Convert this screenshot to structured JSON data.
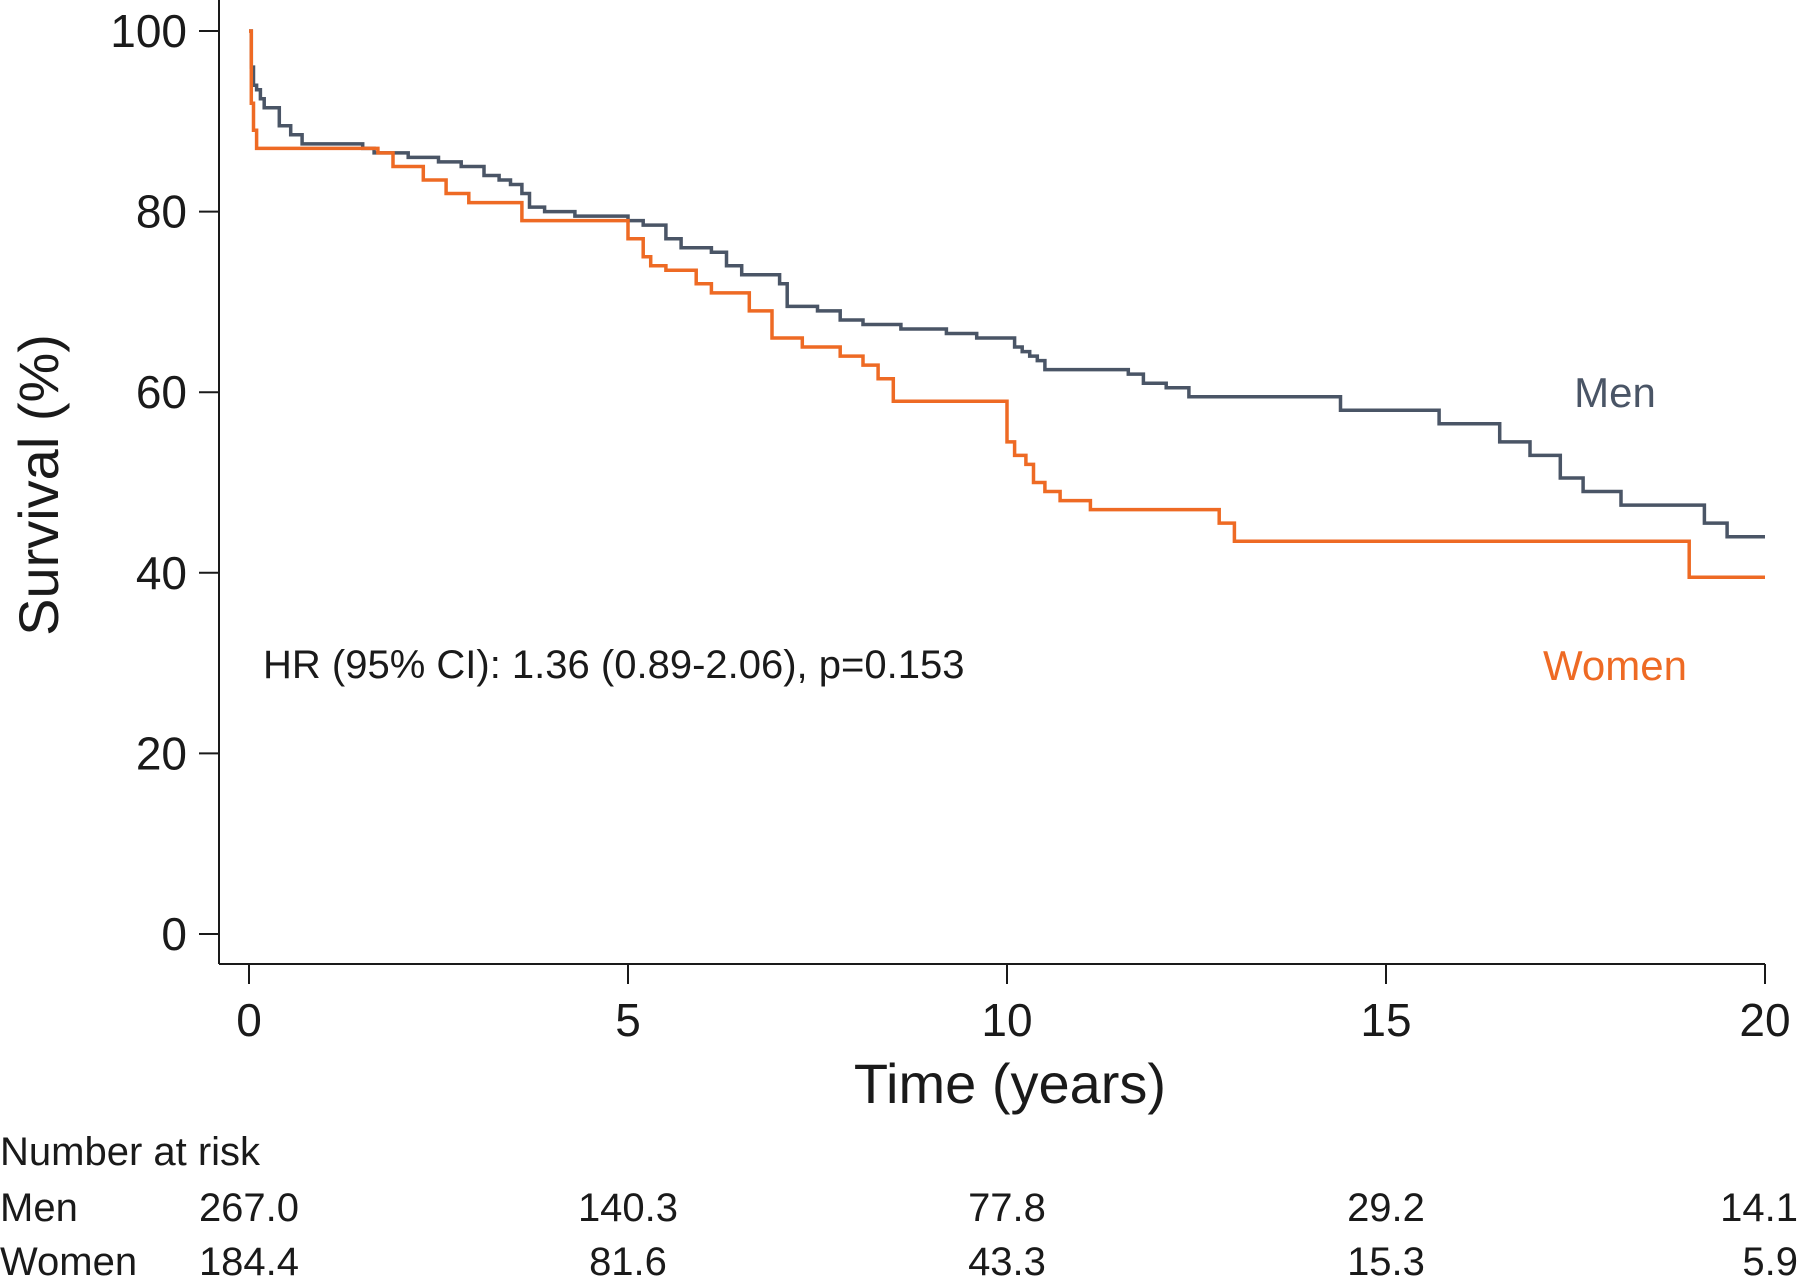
{
  "chart_data": {
    "type": "line",
    "step": true,
    "xlabel": "Time (years)",
    "ylabel": "Survival (%)",
    "xlim": [
      0,
      20
    ],
    "ylim": [
      0,
      100
    ],
    "xticks": [
      "0",
      "5",
      "10",
      "15",
      "20"
    ],
    "yticks": [
      "0",
      "20",
      "40",
      "60",
      "80",
      "100"
    ],
    "grid": false,
    "annotation": "HR (95% CI): 1.36 (0.89-2.06), p=0.153",
    "colors": {
      "men": "#4a5566",
      "women": "#ee6a24"
    },
    "series": [
      {
        "name": "Men",
        "x": [
          0,
          0.03,
          0.06,
          0.1,
          0.15,
          0.2,
          0.4,
          0.55,
          0.7,
          1.5,
          1.65,
          2.1,
          2.5,
          2.8,
          3.1,
          3.3,
          3.45,
          3.6,
          3.7,
          3.9,
          4.3,
          5.0,
          5.2,
          5.5,
          5.7,
          6.1,
          6.3,
          6.5,
          7.0,
          7.1,
          7.5,
          7.8,
          8.1,
          8.6,
          9.2,
          9.6,
          10.1,
          10.2,
          10.3,
          10.4,
          10.5,
          11.0,
          11.6,
          11.8,
          12.1,
          12.4,
          13.0,
          14.4,
          15.7,
          16.5,
          16.9,
          17.3,
          17.6,
          18.1,
          19.2,
          19.5,
          20.0
        ],
        "y": [
          100,
          96,
          94,
          93.5,
          92.5,
          91.5,
          89.5,
          88.5,
          87.5,
          87,
          86.5,
          86,
          85.5,
          85,
          84,
          83.5,
          83,
          82,
          80.5,
          80,
          79.5,
          79,
          78.5,
          77,
          76,
          75.5,
          74,
          73,
          72,
          69.5,
          69,
          68,
          67.5,
          67,
          66.5,
          66,
          65,
          64.5,
          64,
          63.5,
          62.5,
          62.5,
          62,
          61,
          60.5,
          59.5,
          59.5,
          58,
          56.5,
          54.5,
          53,
          50.5,
          49,
          47.5,
          45.5,
          44,
          44
        ]
      },
      {
        "name": "Women",
        "x": [
          0,
          0.03,
          0.06,
          0.1,
          1.7,
          1.9,
          2.3,
          2.6,
          2.9,
          3.6,
          5.0,
          5.2,
          5.3,
          5.5,
          5.9,
          6.1,
          6.6,
          6.9,
          7.3,
          7.8,
          8.1,
          8.3,
          8.5,
          9.5,
          10.0,
          10.1,
          10.25,
          10.35,
          10.5,
          10.7,
          11.1,
          12.2,
          12.8,
          13.0,
          18.2,
          19.0,
          20.0
        ],
        "y": [
          100,
          92,
          89,
          87,
          86.5,
          85,
          83.5,
          82,
          81,
          79,
          77,
          75,
          74,
          73.5,
          72,
          71,
          69,
          66,
          65,
          64,
          63,
          61.5,
          59,
          59,
          54.5,
          53,
          52,
          50,
          49,
          48,
          47,
          47,
          45.5,
          43.5,
          43.5,
          39.5,
          39.5
        ]
      }
    ],
    "series_labels": {
      "men": "Men",
      "women": "Women"
    },
    "risk_table": {
      "title": "Number at risk",
      "rows": [
        {
          "label": "Men",
          "values": [
            "267.0",
            "140.3",
            "77.8",
            "29.2",
            "14.1"
          ]
        },
        {
          "label": "Women",
          "values": [
            "184.4",
            "81.6",
            "43.3",
            "15.3",
            "5.9"
          ]
        }
      ]
    }
  }
}
